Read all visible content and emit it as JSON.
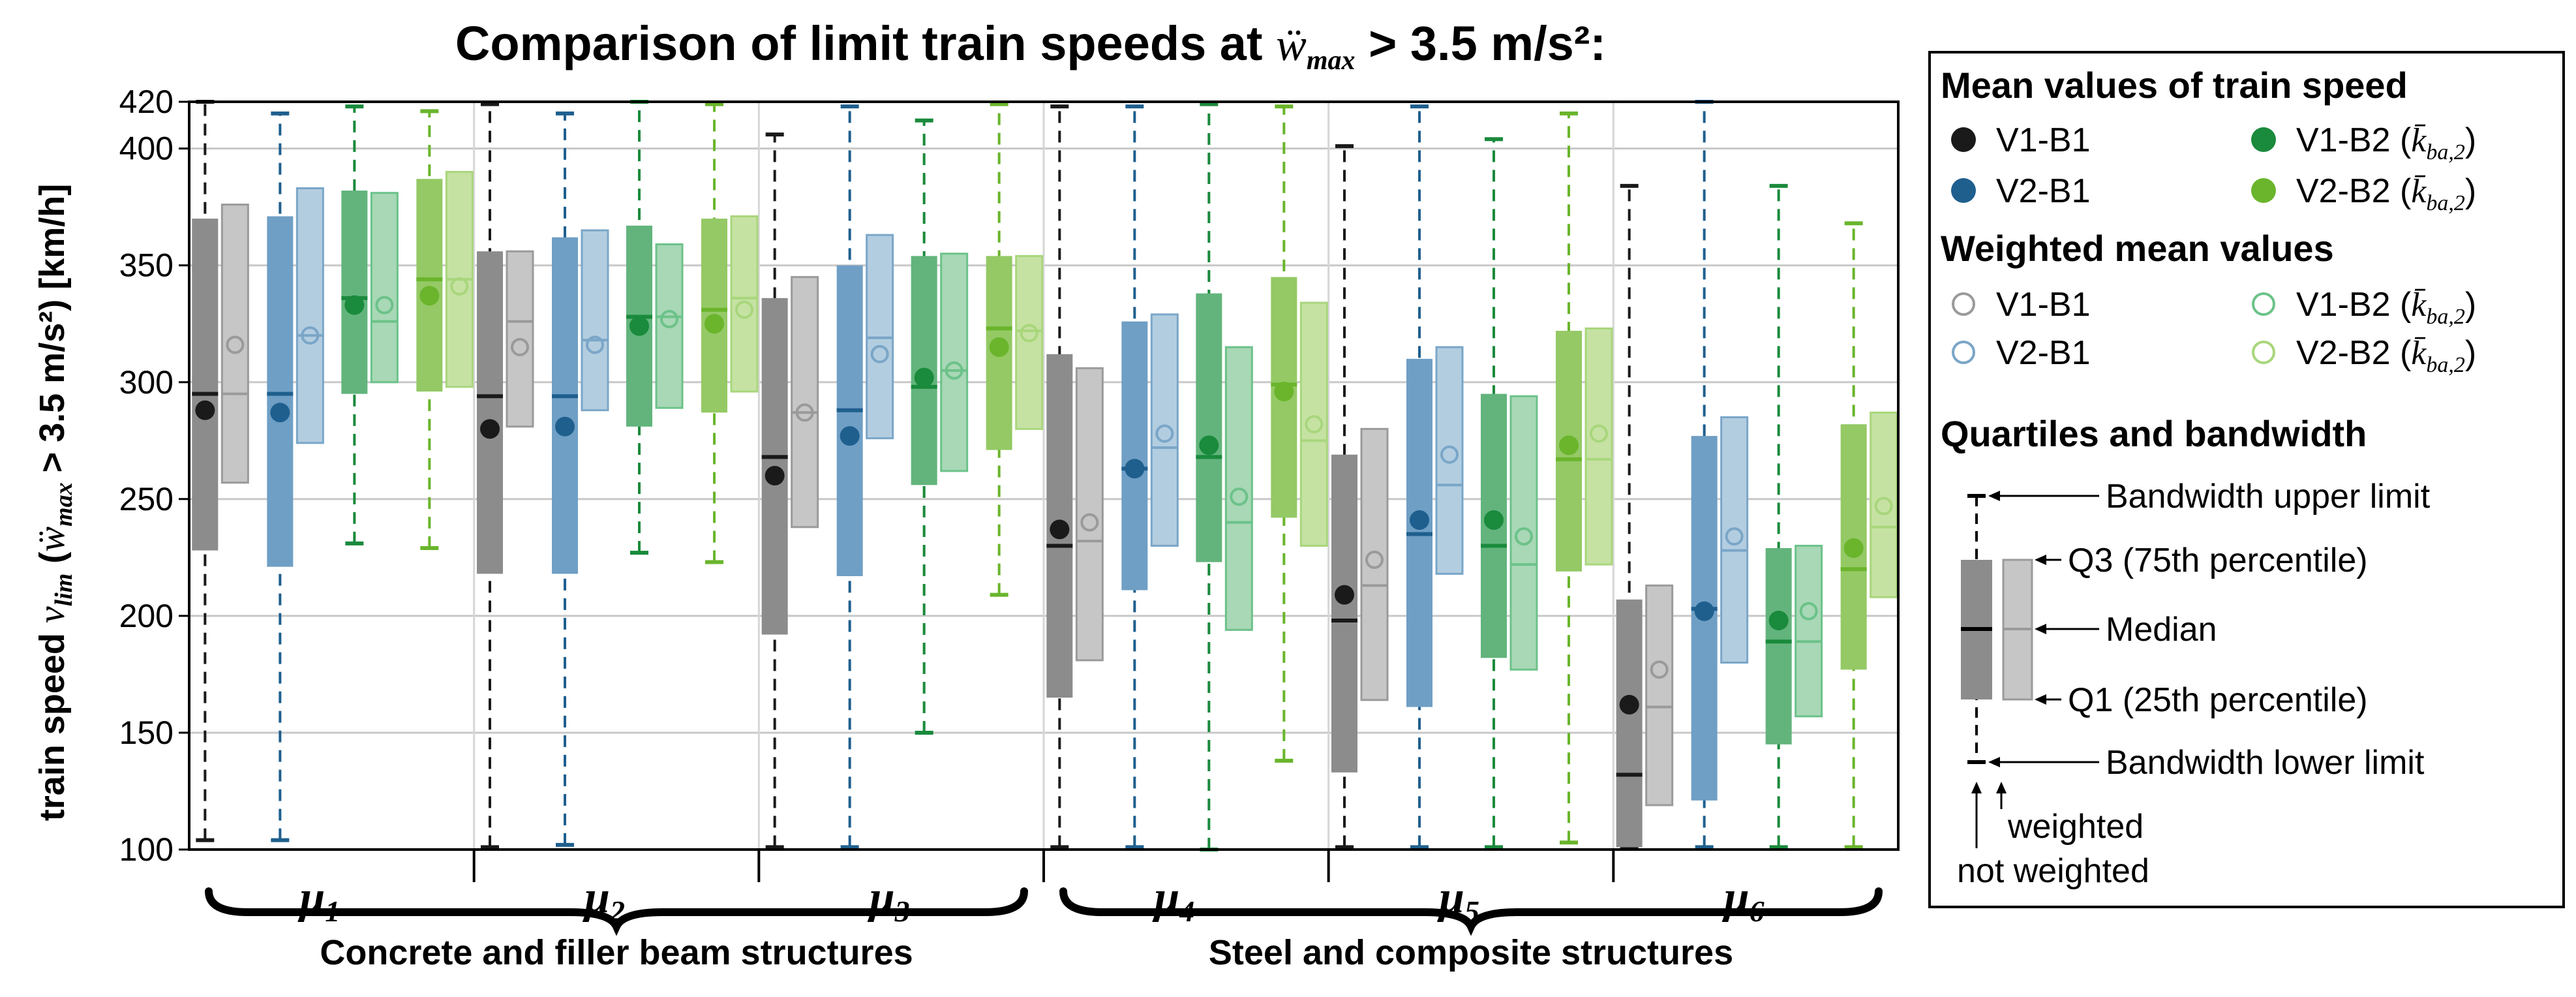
{
  "chart_data": {
    "type": "boxplot",
    "title": {
      "prefix": "Comparison of limit train speeds at ",
      "symbol": "ẅ",
      "symbol_sub": "max",
      "suffix": " > 3.5 m/s²:"
    },
    "ylabel": {
      "prefix": "train speed ",
      "symbol": "v",
      "symbol_sub": "lim",
      "open": " (",
      "symbol2": "ẅ",
      "symbol2_sub": "max",
      "suffix": " > 3.5 m/s²) [km/h]"
    },
    "ylim": [
      100,
      420
    ],
    "yticks": [
      100,
      150,
      200,
      250,
      300,
      350,
      400,
      420
    ],
    "groups": [
      {
        "label": "μ",
        "sub": "1"
      },
      {
        "label": "μ",
        "sub": "2"
      },
      {
        "label": "μ",
        "sub": "3"
      },
      {
        "label": "μ",
        "sub": "4"
      },
      {
        "label": "μ",
        "sub": "5"
      },
      {
        "label": "μ",
        "sub": "6"
      }
    ],
    "categories": [
      {
        "label": "Concrete and filler beam structures",
        "groups": [
          1,
          2,
          3
        ]
      },
      {
        "label": "Steel and composite structures",
        "groups": [
          4,
          5,
          6
        ]
      }
    ],
    "series": [
      {
        "name": "V1-B1",
        "color": "#1a1a1a",
        "weighted_color": "#9a9a9a"
      },
      {
        "name": "V2-B1",
        "color": "#1f5f8e",
        "weighted_color": "#7aa6c8"
      },
      {
        "name": "V1-B2",
        "color": "#1a8a3c",
        "weighted_color": "#6cc28a"
      },
      {
        "name": "V2-B2",
        "color": "#6ab52c",
        "weighted_color": "#a9d67c"
      }
    ],
    "box_colors": {
      "V1-B1": {
        "box": "#8c8c8c",
        "wbox": "#c6c6c6"
      },
      "V2-B1": {
        "box": "#6f9fc5",
        "wbox": "#b3cde0"
      },
      "V1-B2": {
        "box": "#62b47c",
        "wbox": "#a8d8b6"
      },
      "V2-B2": {
        "box": "#94c965",
        "wbox": "#c5e2a3"
      }
    },
    "data": [
      {
        "group": 1,
        "series": "V1-B1",
        "lower": 104,
        "q1": 228,
        "median": 295,
        "q3": 370,
        "upper": 420,
        "mean": 288,
        "w_q1": 257,
        "w_median": 295,
        "w_q3": 376,
        "w_mean": 316
      },
      {
        "group": 1,
        "series": "V2-B1",
        "lower": 104,
        "q1": 221,
        "median": 295,
        "q3": 371,
        "upper": 415,
        "mean": 287,
        "w_q1": 274,
        "w_median": 320,
        "w_q3": 383,
        "w_mean": 320
      },
      {
        "group": 1,
        "series": "V1-B2",
        "lower": 231,
        "q1": 295,
        "median": 336,
        "q3": 382,
        "upper": 418,
        "mean": 333,
        "w_q1": 300,
        "w_median": 326,
        "w_q3": 381,
        "w_mean": 333
      },
      {
        "group": 1,
        "series": "V2-B2",
        "lower": 229,
        "q1": 296,
        "median": 344,
        "q3": 387,
        "upper": 416,
        "mean": 337,
        "w_q1": 298,
        "w_median": 344,
        "w_q3": 390,
        "w_mean": 341
      },
      {
        "group": 2,
        "series": "V1-B1",
        "lower": 101,
        "q1": 218,
        "median": 294,
        "q3": 356,
        "upper": 419,
        "mean": 280,
        "w_q1": 281,
        "w_median": 326,
        "w_q3": 356,
        "w_mean": 315
      },
      {
        "group": 2,
        "series": "V2-B1",
        "lower": 102,
        "q1": 218,
        "median": 294,
        "q3": 362,
        "upper": 415,
        "mean": 281,
        "w_q1": 288,
        "w_median": 318,
        "w_q3": 365,
        "w_mean": 316
      },
      {
        "group": 2,
        "series": "V1-B2",
        "lower": 227,
        "q1": 281,
        "median": 328,
        "q3": 367,
        "upper": 420,
        "mean": 324,
        "w_q1": 289,
        "w_median": 328,
        "w_q3": 359,
        "w_mean": 327
      },
      {
        "group": 2,
        "series": "V2-B2",
        "lower": 223,
        "q1": 287,
        "median": 331,
        "q3": 370,
        "upper": 419,
        "mean": 325,
        "w_q1": 296,
        "w_median": 336,
        "w_q3": 371,
        "w_mean": 331
      },
      {
        "group": 3,
        "series": "V1-B1",
        "lower": 101,
        "q1": 192,
        "median": 268,
        "q3": 336,
        "upper": 406,
        "mean": 260,
        "w_q1": 238,
        "w_median": 287,
        "w_q3": 345,
        "w_mean": 287
      },
      {
        "group": 3,
        "series": "V2-B1",
        "lower": 101,
        "q1": 217,
        "median": 288,
        "q3": 350,
        "upper": 418,
        "mean": 277,
        "w_q1": 276,
        "w_median": 319,
        "w_q3": 363,
        "w_mean": 312
      },
      {
        "group": 3,
        "series": "V1-B2",
        "lower": 150,
        "q1": 256,
        "median": 298,
        "q3": 354,
        "upper": 412,
        "mean": 302,
        "w_q1": 262,
        "w_median": 305,
        "w_q3": 355,
        "w_mean": 305
      },
      {
        "group": 3,
        "series": "V2-B2",
        "lower": 209,
        "q1": 271,
        "median": 323,
        "q3": 354,
        "upper": 419,
        "mean": 315,
        "w_q1": 280,
        "w_median": 322,
        "w_q3": 354,
        "w_mean": 321
      },
      {
        "group": 4,
        "series": "V1-B1",
        "lower": 101,
        "q1": 165,
        "median": 230,
        "q3": 312,
        "upper": 418,
        "mean": 237,
        "w_q1": 181,
        "w_median": 232,
        "w_q3": 306,
        "w_mean": 240
      },
      {
        "group": 4,
        "series": "V2-B1",
        "lower": 101,
        "q1": 211,
        "median": 263,
        "q3": 326,
        "upper": 418,
        "mean": 263,
        "w_q1": 230,
        "w_median": 272,
        "w_q3": 329,
        "w_mean": 278
      },
      {
        "group": 4,
        "series": "V1-B2",
        "lower": 100,
        "q1": 223,
        "median": 268,
        "q3": 338,
        "upper": 419,
        "mean": 273,
        "w_q1": 194,
        "w_median": 240,
        "w_q3": 315,
        "w_mean": 251
      },
      {
        "group": 4,
        "series": "V2-B2",
        "lower": 138,
        "q1": 242,
        "median": 299,
        "q3": 345,
        "upper": 418,
        "mean": 296,
        "w_q1": 230,
        "w_median": 275,
        "w_q3": 334,
        "w_mean": 282
      },
      {
        "group": 5,
        "series": "V1-B1",
        "lower": 101,
        "q1": 133,
        "median": 198,
        "q3": 269,
        "upper": 401,
        "mean": 209,
        "w_q1": 164,
        "w_median": 213,
        "w_q3": 280,
        "w_mean": 224
      },
      {
        "group": 5,
        "series": "V2-B1",
        "lower": 101,
        "q1": 161,
        "median": 235,
        "q3": 310,
        "upper": 418,
        "mean": 241,
        "w_q1": 218,
        "w_median": 256,
        "w_q3": 315,
        "w_mean": 269
      },
      {
        "group": 5,
        "series": "V1-B2",
        "lower": 101,
        "q1": 182,
        "median": 230,
        "q3": 295,
        "upper": 404,
        "mean": 241,
        "w_q1": 177,
        "w_median": 222,
        "w_q3": 294,
        "w_mean": 234
      },
      {
        "group": 5,
        "series": "V2-B2",
        "lower": 103,
        "q1": 219,
        "median": 267,
        "q3": 322,
        "upper": 415,
        "mean": 273,
        "w_q1": 222,
        "w_median": 267,
        "w_q3": 323,
        "w_mean": 278
      },
      {
        "group": 6,
        "series": "V1-B1",
        "lower": 101,
        "q1": 101,
        "median": 132,
        "q3": 207,
        "upper": 384,
        "mean": 162,
        "w_q1": 119,
        "w_median": 161,
        "w_q3": 213,
        "w_mean": 177
      },
      {
        "group": 6,
        "series": "V2-B1",
        "lower": 101,
        "q1": 121,
        "median": 203,
        "q3": 277,
        "upper": 420,
        "mean": 202,
        "w_q1": 180,
        "w_median": 228,
        "w_q3": 285,
        "w_mean": 234
      },
      {
        "group": 6,
        "series": "V1-B2",
        "lower": 101,
        "q1": 145,
        "median": 189,
        "q3": 229,
        "upper": 384,
        "mean": 198,
        "w_q1": 157,
        "w_median": 189,
        "w_q3": 230,
        "w_mean": 202
      },
      {
        "group": 6,
        "series": "V2-B2",
        "lower": 101,
        "q1": 177,
        "median": 220,
        "q3": 282,
        "upper": 368,
        "mean": 229,
        "w_q1": 208,
        "w_median": 238,
        "w_q3": 287,
        "w_mean": 247
      }
    ],
    "legend": {
      "position": "right",
      "mean_title": "Mean values of train speed",
      "weighted_title": "Weighted mean values",
      "quartile_title": "Quartiles and bandwidth",
      "kappa_symbol": "k̄",
      "kappa_sub": "ba,2",
      "entries": [
        {
          "name": "V1-B1",
          "kappa": false
        },
        {
          "name": "V2-B1",
          "kappa": false
        },
        {
          "name": "V1-B2",
          "kappa": true
        },
        {
          "name": "V2-B2",
          "kappa": true
        }
      ],
      "quartile_labels": {
        "upper": "Bandwidth upper limit",
        "q3": "Q3 (75th percentile)",
        "median": "Median",
        "q1": "Q1 (25th percentile)",
        "lower": "Bandwidth lower limit",
        "weighted": "weighted",
        "not_weighted": "not weighted"
      }
    }
  }
}
